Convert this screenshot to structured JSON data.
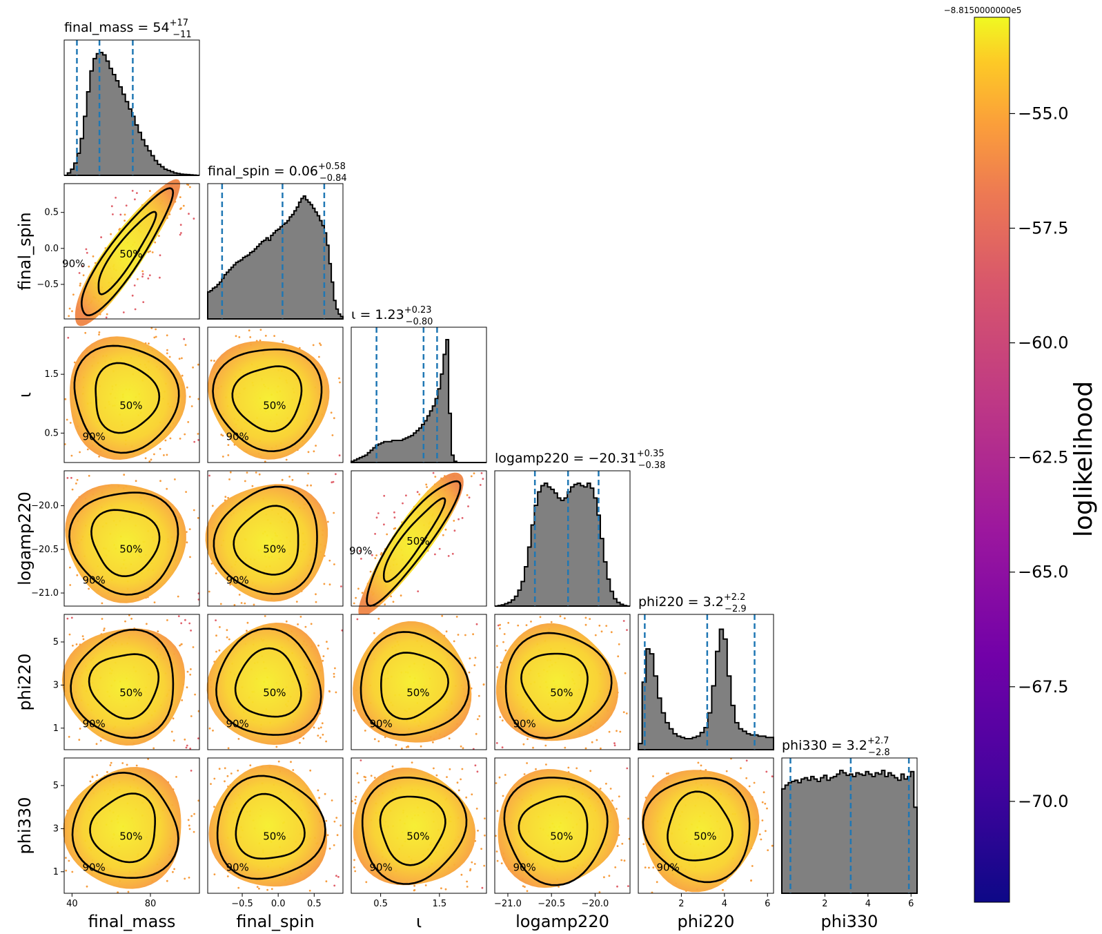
{
  "chart_data": {
    "type": "corner",
    "parameters": [
      {
        "key": "final_mass",
        "label": "final_mass",
        "median": "54",
        "plus": "+17",
        "minus": "−11",
        "range": [
          36,
          105
        ],
        "ticks": [
          40,
          80
        ],
        "tick_labels": [
          "40",
          "80"
        ],
        "quantiles": [
          42.5,
          54,
          71
        ]
      },
      {
        "key": "final_spin",
        "label": "final_spin",
        "median": "0.06",
        "plus": "+0.58",
        "minus": "−0.84",
        "range": [
          -0.98,
          0.9
        ],
        "ticks": [
          -0.5,
          0.0,
          0.5
        ],
        "tick_labels": [
          "−0.5",
          "0.0",
          "0.5"
        ],
        "quantiles": [
          -0.78,
          0.06,
          0.64
        ]
      },
      {
        "key": "iota",
        "label": "ι",
        "median": "1.23",
        "plus": "+0.23",
        "minus": "−0.80",
        "range": [
          0,
          2.3
        ],
        "ticks": [
          0.5,
          1.5
        ],
        "tick_labels": [
          "0.5",
          "1.5"
        ],
        "quantiles": [
          0.43,
          1.23,
          1.46
        ]
      },
      {
        "key": "logamp220",
        "label": "logamp220",
        "median": "−20.31",
        "plus": "+0.35",
        "minus": "−0.38",
        "range": [
          -21.15,
          -19.6
        ],
        "ticks": [
          -21.0,
          -20.5,
          -20.0
        ],
        "tick_labels": [
          "−21.0",
          "−20.5",
          "−20.0"
        ],
        "quantiles": [
          -20.69,
          -20.31,
          -19.96
        ]
      },
      {
        "key": "phi220",
        "label": "phi220",
        "median": "3.2",
        "plus": "+2.2",
        "minus": "−2.9",
        "range": [
          0,
          6.28
        ],
        "ticks": [
          1,
          3,
          5
        ],
        "tick_labels": [
          "1",
          "3",
          "5"
        ],
        "ticks_x": [
          2,
          4,
          6
        ],
        "tick_labels_x": [
          "2",
          "4",
          "6"
        ],
        "quantiles": [
          0.3,
          3.2,
          5.4
        ]
      },
      {
        "key": "phi330",
        "label": "phi330",
        "median": "3.2",
        "plus": "+2.7",
        "minus": "−2.8",
        "range": [
          0,
          6.28
        ],
        "ticks": [
          1,
          3,
          5
        ],
        "tick_labels": [
          "1",
          "3",
          "5"
        ],
        "ticks_x": [
          2,
          4,
          6
        ],
        "tick_labels_x": [
          "2",
          "4",
          "6"
        ],
        "quantiles": [
          0.4,
          3.2,
          5.9
        ]
      }
    ],
    "histograms": {
      "final_mass": [
        0,
        0.02,
        0.05,
        0.1,
        0.18,
        0.3,
        0.48,
        0.68,
        0.85,
        0.95,
        0.99,
        1.0,
        0.98,
        0.93,
        0.87,
        0.82,
        0.77,
        0.72,
        0.66,
        0.6,
        0.54,
        0.48,
        0.41,
        0.35,
        0.29,
        0.24,
        0.2,
        0.16,
        0.12,
        0.09,
        0.07,
        0.05,
        0.04,
        0.03,
        0.02,
        0.015,
        0.01,
        0.008,
        0.006,
        0.004,
        0.002,
        0
      ],
      "final_spin": [
        0.22,
        0.23,
        0.25,
        0.26,
        0.28,
        0.3,
        0.33,
        0.36,
        0.38,
        0.4,
        0.42,
        0.44,
        0.46,
        0.47,
        0.48,
        0.5,
        0.51,
        0.52,
        0.54,
        0.55,
        0.57,
        0.59,
        0.61,
        0.63,
        0.64,
        0.66,
        0.64,
        0.68,
        0.7,
        0.72,
        0.73,
        0.75,
        0.77,
        0.78,
        0.8,
        0.83,
        0.85,
        0.88,
        0.91,
        0.95,
        0.98,
        1.0,
        0.97,
        0.95,
        0.93,
        0.9,
        0.87,
        0.84,
        0.8,
        0.76,
        0.7,
        0.6,
        0.45,
        0.3,
        0.15,
        0.08,
        0.04,
        0.02
      ],
      "iota": [
        0.01,
        0.02,
        0.03,
        0.04,
        0.05,
        0.06,
        0.08,
        0.1,
        0.12,
        0.14,
        0.15,
        0.16,
        0.17,
        0.17,
        0.17,
        0.18,
        0.18,
        0.18,
        0.18,
        0.19,
        0.2,
        0.21,
        0.22,
        0.24,
        0.26,
        0.28,
        0.31,
        0.34,
        0.38,
        0.42,
        0.46,
        0.52,
        0.6,
        0.72,
        0.88,
        1.0,
        0.4,
        0.06,
        0.01,
        0,
        0,
        0,
        0,
        0,
        0,
        0,
        0,
        0,
        0,
        0
      ],
      "logamp220": [
        0,
        0.005,
        0.01,
        0.02,
        0.03,
        0.05,
        0.08,
        0.13,
        0.2,
        0.32,
        0.48,
        0.66,
        0.82,
        0.93,
        0.98,
        1.0,
        0.97,
        0.95,
        0.92,
        0.88,
        0.86,
        0.88,
        0.93,
        0.97,
        0.99,
        1.0,
        0.98,
        0.97,
        1.0,
        0.96,
        0.88,
        0.74,
        0.55,
        0.36,
        0.22,
        0.12,
        0.06,
        0.03,
        0.015,
        0.005,
        0
      ],
      "phi220": [
        0.05,
        0.55,
        0.82,
        0.78,
        0.6,
        0.42,
        0.3,
        0.22,
        0.17,
        0.13,
        0.11,
        0.1,
        0.09,
        0.09,
        0.1,
        0.11,
        0.14,
        0.18,
        0.3,
        0.52,
        0.8,
        0.98,
        0.9,
        0.6,
        0.36,
        0.22,
        0.17,
        0.15,
        0.13,
        0.12,
        0.12,
        0.11,
        0.11,
        0.1,
        0.1
      ],
      "phi330": [
        0.85,
        0.88,
        0.9,
        0.91,
        0.92,
        0.9,
        0.93,
        0.94,
        0.92,
        0.95,
        0.93,
        0.91,
        0.94,
        0.96,
        0.92,
        0.94,
        0.95,
        0.97,
        1.0,
        0.98,
        0.96,
        0.97,
        0.95,
        0.98,
        0.97,
        0.96,
        0.99,
        0.97,
        0.95,
        0.98,
        0.97,
        1.0,
        0.95,
        0.98,
        0.96,
        0.94,
        0.92,
        0.97,
        0.93,
        0.95,
        0.99,
        0.7
      ]
    },
    "contour_labels": [
      "50%",
      "90%"
    ],
    "colorbar": {
      "label": "loglikelihood",
      "offset_text": "−8.8150000000e5",
      "range": [
        -72.2,
        -52.9
      ],
      "ticks": [
        -55.0,
        -57.5,
        -60.0,
        -62.5,
        -65.0,
        -67.5,
        -70.0
      ],
      "tick_labels": [
        "−55.0",
        "−57.5",
        "−60.0",
        "−62.5",
        "−65.0",
        "−67.5",
        "−70.0"
      ],
      "colormap": "plasma"
    },
    "colors": {
      "histogram_fill": "#808080",
      "quantile_line": "#1f77b4",
      "contour": "#000000"
    }
  }
}
